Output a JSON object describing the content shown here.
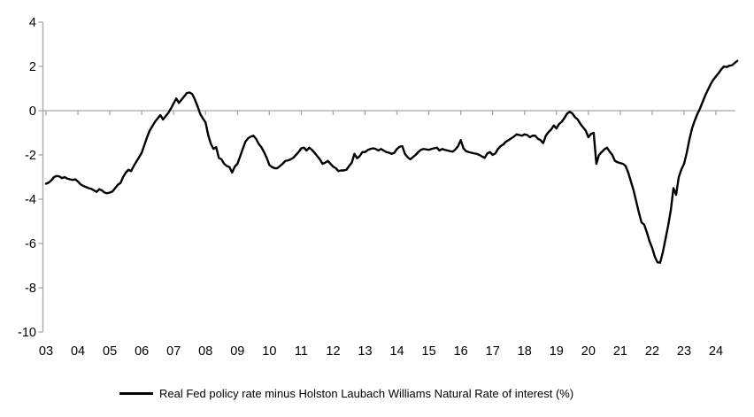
{
  "legend": {
    "label": "Real Fed policy rate minus Holston Laubach Williams Natural Rate of interest (%)"
  },
  "colors": {
    "series": "#000000",
    "axis": "#a6a6a6",
    "zero_line": "#a6a6a6",
    "text": "#000000"
  },
  "chart_data": {
    "type": "line",
    "title": "",
    "xlabel": "",
    "ylabel": "",
    "grid": false,
    "zero_line": true,
    "legend_position": "bottom",
    "ylim": [
      -10,
      4
    ],
    "y_ticks": [
      4,
      2,
      0,
      -2,
      -4,
      -6,
      -8,
      -10
    ],
    "y_tick_labels": [
      "4",
      "2",
      "0",
      "-2",
      "-4",
      "-6",
      "-8",
      "-10"
    ],
    "x_tick_labels": [
      "03",
      "04",
      "05",
      "06",
      "07",
      "08",
      "09",
      "10",
      "11",
      "12",
      "13",
      "14",
      "15",
      "16",
      "17",
      "18",
      "19",
      "20",
      "21",
      "22",
      "23",
      "24"
    ],
    "x_start_year": 2003,
    "frequency": "monthly",
    "series": [
      {
        "name": "Real Fed policy rate minus Holston Laubach Williams Natural Rate of interest (%)",
        "color": "#000000",
        "values": [
          -3.3,
          -3.25,
          -3.15,
          -3.0,
          -2.95,
          -2.97,
          -3.05,
          -3.0,
          -3.07,
          -3.1,
          -3.13,
          -3.1,
          -3.2,
          -3.33,
          -3.4,
          -3.45,
          -3.5,
          -3.53,
          -3.6,
          -3.67,
          -3.55,
          -3.6,
          -3.7,
          -3.73,
          -3.7,
          -3.65,
          -3.5,
          -3.35,
          -3.27,
          -3.0,
          -2.8,
          -2.67,
          -2.73,
          -2.5,
          -2.3,
          -2.1,
          -1.9,
          -1.55,
          -1.2,
          -0.9,
          -0.7,
          -0.5,
          -0.35,
          -0.2,
          -0.4,
          -0.25,
          -0.1,
          0.1,
          0.33,
          0.55,
          0.35,
          0.5,
          0.65,
          0.8,
          0.82,
          0.75,
          0.5,
          0.2,
          -0.15,
          -0.35,
          -0.53,
          -1.1,
          -1.5,
          -1.73,
          -1.65,
          -2.13,
          -2.2,
          -2.4,
          -2.5,
          -2.55,
          -2.8,
          -2.53,
          -2.4,
          -2.07,
          -1.73,
          -1.4,
          -1.25,
          -1.17,
          -1.13,
          -1.27,
          -1.5,
          -1.65,
          -1.87,
          -2.13,
          -2.45,
          -2.55,
          -2.6,
          -2.6,
          -2.5,
          -2.4,
          -2.27,
          -2.25,
          -2.2,
          -2.13,
          -2.0,
          -1.87,
          -1.7,
          -1.67,
          -1.8,
          -1.67,
          -1.77,
          -1.9,
          -2.05,
          -2.2,
          -2.4,
          -2.35,
          -2.27,
          -2.4,
          -2.53,
          -2.6,
          -2.73,
          -2.7,
          -2.7,
          -2.67,
          -2.5,
          -2.35,
          -1.95,
          -2.15,
          -2.05,
          -1.87,
          -1.87,
          -1.78,
          -1.73,
          -1.7,
          -1.73,
          -1.8,
          -1.73,
          -1.8,
          -1.87,
          -1.9,
          -1.95,
          -1.9,
          -1.73,
          -1.63,
          -1.6,
          -1.95,
          -2.1,
          -2.2,
          -2.1,
          -2.0,
          -1.87,
          -1.77,
          -1.73,
          -1.75,
          -1.77,
          -1.73,
          -1.7,
          -1.67,
          -1.8,
          -1.73,
          -1.77,
          -1.8,
          -1.83,
          -1.85,
          -1.75,
          -1.6,
          -1.33,
          -1.7,
          -1.83,
          -1.87,
          -1.9,
          -1.93,
          -1.95,
          -2.0,
          -2.07,
          -2.13,
          -1.93,
          -1.87,
          -2.0,
          -1.93,
          -1.73,
          -1.6,
          -1.53,
          -1.4,
          -1.33,
          -1.25,
          -1.17,
          -1.07,
          -1.1,
          -1.13,
          -1.07,
          -1.1,
          -1.2,
          -1.13,
          -1.13,
          -1.27,
          -1.33,
          -1.47,
          -1.13,
          -0.97,
          -0.85,
          -0.67,
          -0.8,
          -0.6,
          -0.5,
          -0.33,
          -0.13,
          -0.05,
          -0.13,
          -0.3,
          -0.4,
          -0.6,
          -0.75,
          -0.9,
          -1.2,
          -1.05,
          -1.0,
          -2.4,
          -2.0,
          -1.87,
          -1.75,
          -1.67,
          -1.85,
          -2.0,
          -2.27,
          -2.33,
          -2.37,
          -2.4,
          -2.5,
          -2.8,
          -3.2,
          -3.6,
          -4.1,
          -4.6,
          -5.05,
          -5.15,
          -5.5,
          -5.9,
          -6.2,
          -6.6,
          -6.85,
          -6.87,
          -6.4,
          -5.8,
          -5.2,
          -4.5,
          -3.5,
          -3.8,
          -3.0,
          -2.65,
          -2.4,
          -1.9,
          -1.3,
          -0.8,
          -0.45,
          -0.15,
          0.1,
          0.4,
          0.7,
          0.95,
          1.2,
          1.4,
          1.55,
          1.7,
          1.87,
          2.0,
          1.97,
          2.03,
          2.05,
          2.15,
          2.25
        ]
      }
    ]
  },
  "geometry_note": "y=0 gridline spans plot; year ticks hang below zero line; y-axis tick labels on left; x labels at bottom (low position)"
}
